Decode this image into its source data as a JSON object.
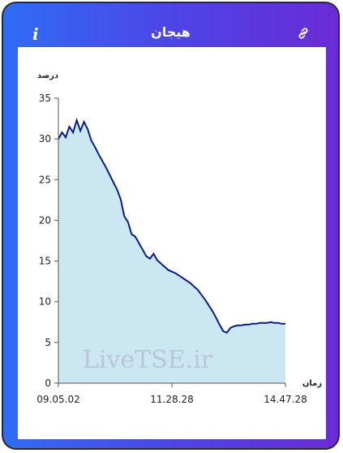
{
  "header": {
    "title": "هیجان",
    "info_icon": "info-icon",
    "link_icon": "link-icon"
  },
  "watermark": "LiveTSE.ir",
  "colors": {
    "line": "#0a1a8a",
    "fill": "#cbe7f2",
    "axis": "#555555"
  },
  "chart_data": {
    "type": "area",
    "ylabel": "درصد",
    "xlabel": "زمان",
    "ylim": [
      0,
      35
    ],
    "yticks": [
      0,
      5,
      10,
      15,
      20,
      25,
      30,
      35
    ],
    "x_tick_labels": [
      "09.05.02",
      "11.28.28",
      "14.47.28"
    ],
    "grid": false,
    "series": [
      {
        "values": [
          30.0,
          30.8,
          30.2,
          31.5,
          30.8,
          32.3,
          31.0,
          32.1,
          31.2,
          29.8,
          29.0,
          28.1,
          27.3,
          26.5,
          25.6,
          24.7,
          23.8,
          22.6,
          20.5,
          19.8,
          18.3,
          18.0,
          17.2,
          16.4,
          15.6,
          15.3,
          15.9,
          15.1,
          14.7,
          14.3,
          13.9,
          13.7,
          13.5,
          13.2,
          12.9,
          12.6,
          12.3,
          11.9,
          11.5,
          10.9,
          10.3,
          9.6,
          8.9,
          8.1,
          7.2,
          6.4,
          6.2,
          6.8,
          7.0,
          7.1,
          7.1,
          7.2,
          7.2,
          7.3,
          7.3,
          7.4,
          7.4,
          7.4,
          7.5,
          7.4,
          7.4,
          7.3,
          7.3
        ]
      }
    ]
  }
}
